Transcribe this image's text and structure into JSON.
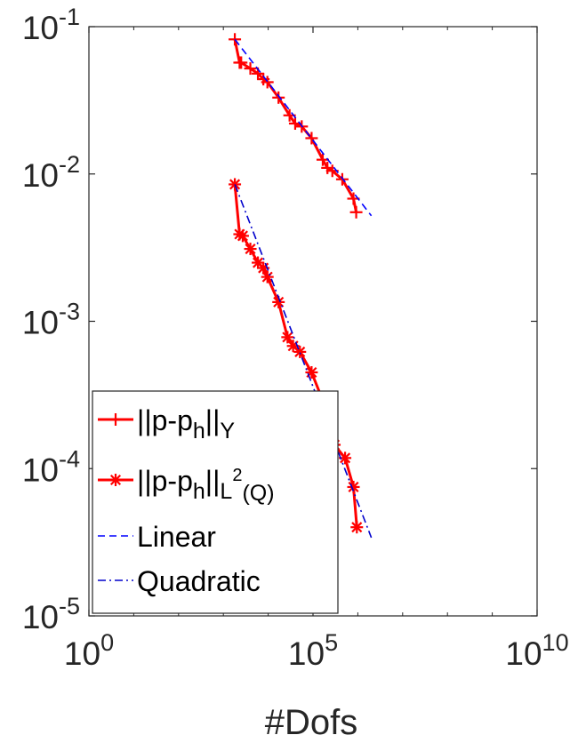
{
  "chart_data": {
    "type": "line",
    "title": "",
    "xlabel": "#Dofs",
    "ylabel": "",
    "xscale": "log",
    "yscale": "log",
    "xlim": [
      1,
      10000000000
    ],
    "ylim": [
      1e-05,
      0.1
    ],
    "grid": false,
    "legend_position": "bottom-left",
    "x_ticks": [
      {
        "value": 1,
        "base": "10",
        "exp": "0"
      },
      {
        "value": 100000,
        "base": "10",
        "exp": "5"
      },
      {
        "value": 10000000000,
        "base": "10",
        "exp": "10"
      }
    ],
    "y_ticks": [
      {
        "value": 0.1,
        "base": "10",
        "exp": "-1"
      },
      {
        "value": 0.01,
        "base": "10",
        "exp": "-2"
      },
      {
        "value": 0.001,
        "base": "10",
        "exp": "-3"
      },
      {
        "value": 0.0001,
        "base": "10",
        "exp": "-4"
      },
      {
        "value": 1e-05,
        "base": "10",
        "exp": "-5"
      }
    ],
    "series": [
      {
        "name": "||p-p_h||_Y",
        "color": "#ff0000",
        "marker": "plus",
        "dash": "solid",
        "x": [
          1800,
          2300,
          2500,
          4000,
          5900,
          7800,
          9600,
          17000,
          30000,
          40000,
          56000,
          93000,
          165000,
          210000,
          270000,
          450000,
          800000,
          920000
        ],
        "y": [
          0.082,
          0.057,
          0.057,
          0.052,
          0.048,
          0.044,
          0.042,
          0.033,
          0.025,
          0.022,
          0.021,
          0.0175,
          0.0125,
          0.011,
          0.0105,
          0.0092,
          0.0068,
          0.0055
        ]
      },
      {
        "name": "||p-p_h||_L2(Q)",
        "color": "#ff0000",
        "marker": "asterisk",
        "dash": "solid",
        "x": [
          1800,
          2300,
          2700,
          4000,
          5900,
          7800,
          9600,
          17000,
          27000,
          36000,
          51000,
          93000,
          165000,
          210000,
          300000,
          520000,
          800000,
          950000
        ],
        "y": [
          0.0085,
          0.0039,
          0.0038,
          0.0031,
          0.0025,
          0.0023,
          0.002,
          0.00135,
          0.00078,
          0.00068,
          0.00062,
          0.00045,
          0.00029,
          0.000165,
          0.000145,
          0.000118,
          7.5e-05,
          4e-05
        ]
      },
      {
        "name": "Linear",
        "color": "#0000ff",
        "marker": "none",
        "dash": "dashed",
        "x": [
          1800,
          2000000
        ],
        "y": [
          0.082,
          0.0052
        ]
      },
      {
        "name": "Quadratic",
        "color": "#0000cc",
        "marker": "none",
        "dash": "dashdot",
        "x": [
          1800,
          2000000
        ],
        "y": [
          0.0085,
          3.4e-05
        ]
      }
    ],
    "legend": [
      {
        "label": "||p-p",
        "sub": "h",
        "post": "||",
        "sub2": "Y",
        "sup2": ""
      },
      {
        "label": "||p-p",
        "sub": "h",
        "post": "||",
        "sub2": "L",
        "sup2": "2",
        "sub3": "(Q)"
      },
      {
        "label": "Linear"
      },
      {
        "label": "Quadratic"
      }
    ]
  }
}
